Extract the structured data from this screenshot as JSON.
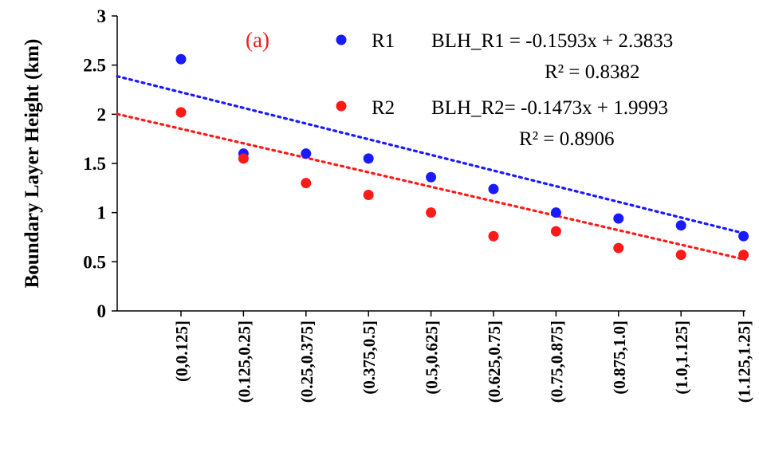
{
  "chart_data": {
    "type": "scatter",
    "panel_label": "(a)",
    "title": "",
    "xlabel": "",
    "ylabel": "Boundary Layer Height (km)",
    "ylim": [
      0,
      3
    ],
    "y_ticks": [
      "0",
      "0.5",
      "1",
      "1.5",
      "2",
      "2.5",
      "3"
    ],
    "categories": [
      "(0,0.125]",
      "(0.125,0.25]",
      "(0.25,0.375]",
      "(0.375,0.5]",
      "(0.5,0.625]",
      "(0.625,0.75]",
      "(0.75,0.875]",
      "(0.875,1.0]",
      "(1.0,1.125]",
      "(1.125,1.25]"
    ],
    "grid": false,
    "legend_position": "top-right",
    "series": [
      {
        "name": "R1",
        "color": "#1a1aff",
        "values": [
          2.56,
          1.6,
          1.6,
          1.55,
          1.36,
          1.24,
          1.0,
          0.94,
          0.87,
          0.76
        ],
        "trend": {
          "slope": -0.1593,
          "intercept": 2.3833,
          "equation": "BLH_R1 = -0.1593x + 2.3833",
          "r2": "R² = 0.8382"
        }
      },
      {
        "name": "R2",
        "color": "#ff1a1a",
        "values": [
          2.02,
          1.55,
          1.3,
          1.18,
          1.0,
          0.76,
          0.81,
          0.64,
          0.57,
          0.57
        ],
        "trend": {
          "slope": -0.1473,
          "intercept": 1.9993,
          "equation": "BLH_R2= -0.1473x + 1.9993",
          "r2": "R² = 0.8906"
        }
      }
    ]
  }
}
